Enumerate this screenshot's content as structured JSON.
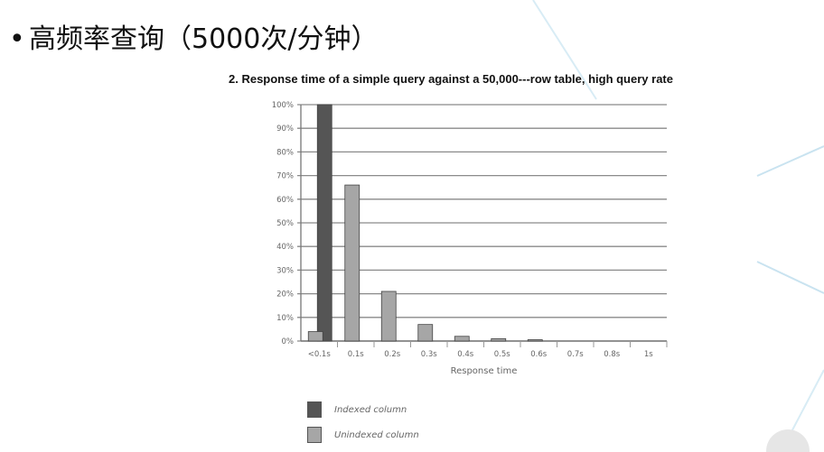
{
  "heading": {
    "bullet": "•",
    "text": "高频率查询（5000次/分钟）"
  },
  "colors": {
    "indexed": "#555555",
    "unindexed": "#a6a6a6",
    "grid": "#888888",
    "decor_lines": "#c9e3f0"
  },
  "legend": {
    "items": [
      {
        "label": "Indexed column",
        "color": "#555555"
      },
      {
        "label": "Unindexed column",
        "color": "#a6a6a6"
      }
    ]
  },
  "chart_data": {
    "type": "bar",
    "title": "2. Response time of a simple query against a 50,000---row table, high query rate",
    "xlabel": "Response time",
    "ylabel": "",
    "categories": [
      "<0.1s",
      "0.1s",
      "0.2s",
      "0.3s",
      "0.4s",
      "0.5s",
      "0.6s",
      "0.7s",
      "0.8s",
      "1s"
    ],
    "series": [
      {
        "name": "Indexed column",
        "values": [
          100,
          0,
          0,
          0,
          0,
          0,
          0,
          0,
          0,
          0
        ]
      },
      {
        "name": "Unindexed column",
        "values": [
          4,
          66,
          21,
          7,
          2,
          1,
          0.5,
          0,
          0,
          0
        ]
      }
    ],
    "ylim": [
      0,
      100
    ],
    "yticks": [
      "0%",
      "10%",
      "20%",
      "30%",
      "40%",
      "50%",
      "60%",
      "70%",
      "80%",
      "90%",
      "100%"
    ],
    "grid": true,
    "legend_position": "bottom-left"
  }
}
